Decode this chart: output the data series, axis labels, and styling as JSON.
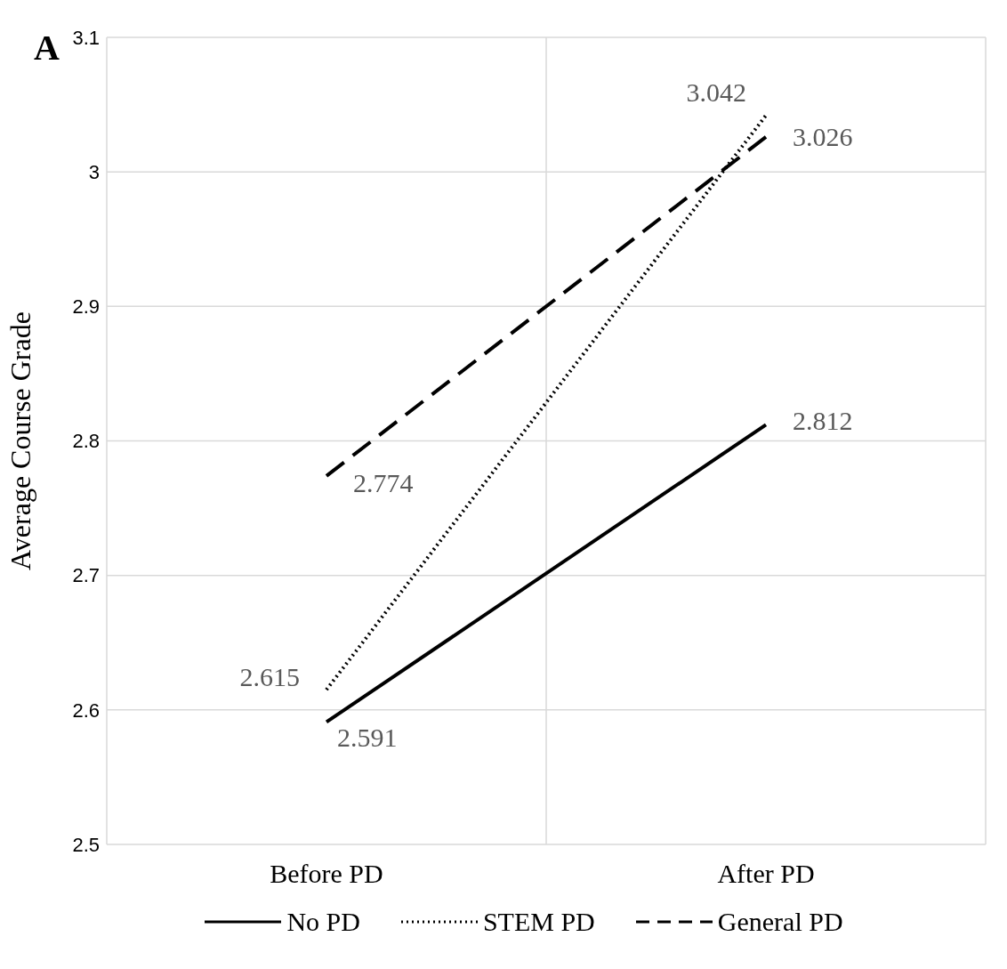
{
  "chart_data": {
    "type": "line",
    "categories": [
      "Before PD",
      "After PD"
    ],
    "ylabel": "Average Course Grade",
    "ylim": [
      2.5,
      3.1
    ],
    "yticks": [
      2.5,
      2.6,
      2.7,
      2.8,
      2.9,
      3,
      3.1
    ],
    "grid": true,
    "legend": "bottom",
    "marker": "none",
    "data_labels": true,
    "annotations": [
      "A"
    ],
    "series": [
      {
        "name": "No PD",
        "color": "#000000",
        "line_style": "solid",
        "values": [
          2.591,
          2.812
        ]
      },
      {
        "name": "STEM PD",
        "color": "#000000",
        "line_style": "dotted",
        "values": [
          2.615,
          3.042
        ]
      },
      {
        "name": "General PD",
        "color": "#000000",
        "line_style": "dashed",
        "values": [
          2.774,
          3.026
        ]
      }
    ]
  }
}
